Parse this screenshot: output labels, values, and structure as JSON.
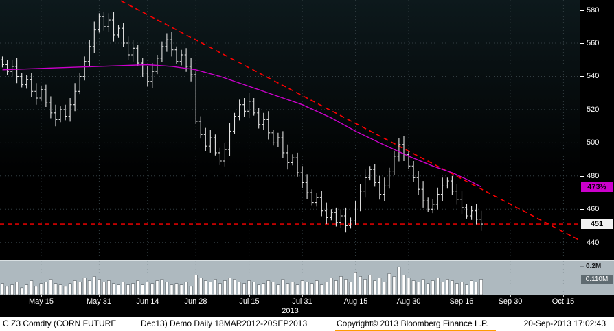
{
  "bottom_bar": {
    "instrument": "C Z3 Comdty (CORN FUTURE",
    "contract_info": "Dec13) Demo  Daily 18MAR2012-20SEP2013",
    "copyright": "Copyright© 2013 Bloomberg Finance L.P.",
    "datetime": "20-Sep-2013 17:02:43"
  },
  "chart_data": {
    "type": "ohlc-bar",
    "title": "C Z3 Comdty (CORN FUTURE Dec13) daily price with moving average, trendline and volume",
    "x_domain": [
      0,
      120
    ],
    "ylim": [
      430,
      586
    ],
    "price_axis": {
      "ticks": [
        580,
        560,
        540,
        520,
        500,
        480,
        460,
        440
      ]
    },
    "x_ticks": [
      {
        "label": "May 15",
        "i": 8
      },
      {
        "label": "May 31",
        "i": 20
      },
      {
        "label": "Jun 14",
        "i": 30
      },
      {
        "label": "Jun 28",
        "i": 40
      },
      {
        "label": "Jul 15",
        "i": 51
      },
      {
        "label": "Jul 31",
        "i": 62
      },
      {
        "label": "Aug 15",
        "i": 73
      },
      {
        "label": "Aug 30",
        "i": 84
      },
      {
        "label": "Sep 16",
        "i": 95
      },
      {
        "label": "Sep 30",
        "i": 105
      },
      {
        "label": "Oct 15",
        "i": 116
      }
    ],
    "year_label": "2013",
    "closes": [
      547,
      543,
      546,
      540,
      535,
      538,
      531,
      527,
      532,
      524,
      518,
      514,
      520,
      516,
      523,
      531,
      540,
      549,
      558,
      568,
      576,
      570,
      574,
      565,
      569,
      560,
      553,
      557,
      548,
      542,
      537,
      543,
      551,
      558,
      562,
      556,
      549,
      553,
      546,
      541,
      513,
      505,
      498,
      503,
      494,
      489,
      496,
      507,
      516,
      523,
      519,
      525,
      518,
      511,
      514,
      506,
      500,
      503,
      494,
      488,
      491,
      482,
      476,
      470,
      464,
      467,
      459,
      455,
      458,
      452,
      456,
      450,
      453,
      462,
      471,
      479,
      484,
      476,
      469,
      474,
      483,
      492,
      499,
      493,
      486,
      479,
      472,
      465,
      460,
      463,
      469,
      474,
      477,
      471,
      466,
      461,
      456,
      459,
      454,
      451
    ],
    "volumes": [
      0.08,
      0.06,
      0.07,
      0.09,
      0.05,
      0.07,
      0.1,
      0.06,
      0.08,
      0.09,
      0.11,
      0.08,
      0.07,
      0.06,
      0.08,
      0.1,
      0.09,
      0.12,
      0.1,
      0.13,
      0.11,
      0.09,
      0.1,
      0.08,
      0.07,
      0.09,
      0.07,
      0.08,
      0.1,
      0.07,
      0.09,
      0.08,
      0.1,
      0.11,
      0.09,
      0.07,
      0.08,
      0.07,
      0.09,
      0.06,
      0.14,
      0.12,
      0.1,
      0.09,
      0.11,
      0.08,
      0.1,
      0.12,
      0.11,
      0.09,
      0.08,
      0.1,
      0.09,
      0.07,
      0.08,
      0.1,
      0.09,
      0.07,
      0.11,
      0.08,
      0.09,
      0.07,
      0.1,
      0.09,
      0.08,
      0.1,
      0.07,
      0.09,
      0.12,
      0.1,
      0.13,
      0.11,
      0.09,
      0.16,
      0.13,
      0.11,
      0.14,
      0.1,
      0.12,
      0.09,
      0.15,
      0.13,
      0.2,
      0.14,
      0.12,
      0.1,
      0.09,
      0.11,
      0.08,
      0.1,
      0.12,
      0.09,
      0.11,
      0.1,
      0.08,
      0.09,
      0.07,
      0.1,
      0.09,
      0.11
    ],
    "ma_points": [
      [
        0,
        544
      ],
      [
        10,
        545
      ],
      [
        20,
        546
      ],
      [
        30,
        547
      ],
      [
        35,
        546
      ],
      [
        40,
        544
      ],
      [
        45,
        540
      ],
      [
        51,
        534
      ],
      [
        56,
        529
      ],
      [
        62,
        523
      ],
      [
        68,
        515
      ],
      [
        73,
        507
      ],
      [
        78,
        500
      ],
      [
        84,
        492
      ],
      [
        89,
        486
      ],
      [
        93,
        482
      ],
      [
        96,
        478
      ],
      [
        99,
        473.5
      ]
    ],
    "ma_value": 473.5,
    "ma_label": "473½",
    "last_price": 451,
    "last_price_label": "451",
    "trendline": {
      "x1": 25,
      "y1": 585.5,
      "x2": 120,
      "y2": 441
    },
    "volume_axis": {
      "render_max": 0.24,
      "tick_value": 0.2,
      "tick_label": "0.2M",
      "last_value": 0.11,
      "last_label": "0.110M"
    },
    "colors": {
      "background_top": "#0d191c",
      "background": "#000000",
      "bar": "#e3e3e3",
      "ma_line": "#cc00cc",
      "trend_line": "#ff0000",
      "grid": "#323e42",
      "axis_text": "#ffffff",
      "volume_panel": "#aeb9bf",
      "volume_bar": "#ffffff",
      "volume_bar_stroke": "#5a6266",
      "volume_grid": "#93a0a6",
      "ma_badge_bg": "#cc00cc",
      "last_badge_bg": "#f2f2f2",
      "volume_badge_bg": "#5f6b71",
      "bottom_bar_bg": "#ffffff",
      "highlight_underline": "#ff9c00"
    }
  }
}
